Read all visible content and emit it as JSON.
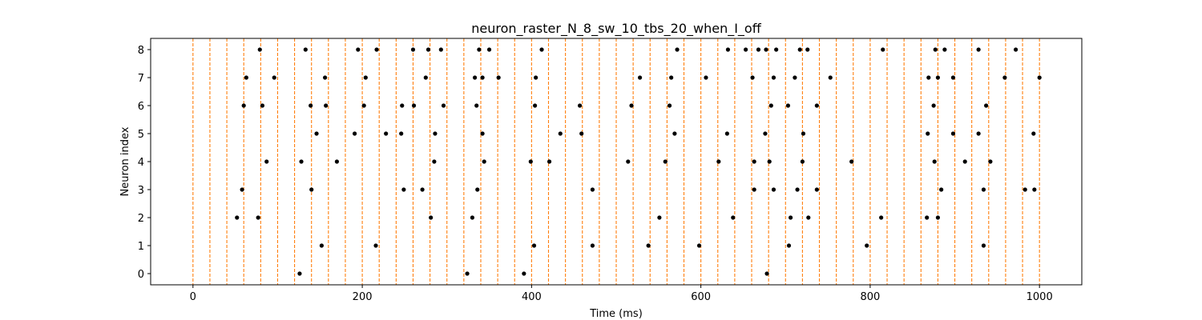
{
  "chart_data": {
    "type": "scatter",
    "title": "neuron_raster_N_8_sw_10_tbs_20_when_I_off",
    "xlabel": "Time (ms)",
    "ylabel": "Neuron index",
    "xlim": [
      -50,
      1050
    ],
    "ylim": [
      -0.4,
      8.4
    ],
    "x_ticks": [
      0,
      200,
      400,
      600,
      800,
      1000
    ],
    "y_ticks": [
      0,
      1,
      2,
      3,
      4,
      5,
      6,
      7,
      8
    ],
    "grid": false,
    "marker_color": "#000000",
    "vline_color": "#ff7f0e",
    "vlines": [
      0,
      20,
      40,
      60,
      80,
      100,
      120,
      140,
      160,
      180,
      200,
      220,
      240,
      260,
      280,
      300,
      320,
      340,
      360,
      380,
      400,
      420,
      440,
      460,
      480,
      500,
      520,
      540,
      560,
      580,
      600,
      620,
      640,
      660,
      680,
      700,
      720,
      740,
      760,
      780,
      800,
      820,
      840,
      860,
      880,
      900,
      920,
      940,
      960,
      980,
      1000
    ],
    "series": [
      {
        "neuron": 0,
        "x": [
          126,
          324,
          391,
          678
        ]
      },
      {
        "neuron": 1,
        "x": [
          152,
          216,
          403,
          472,
          538,
          598,
          704,
          796,
          934
        ]
      },
      {
        "neuron": 2,
        "x": [
          52,
          77,
          281,
          330,
          551,
          638,
          706,
          727,
          813,
          867,
          880
        ]
      },
      {
        "neuron": 3,
        "x": [
          58,
          140,
          249,
          271,
          336,
          472,
          663,
          686,
          714,
          737,
          884,
          934,
          983,
          994
        ]
      },
      {
        "neuron": 4,
        "x": [
          87,
          128,
          170,
          285,
          344,
          399,
          421,
          514,
          558,
          621,
          663,
          681,
          720,
          778,
          876,
          912,
          942
        ]
      },
      {
        "neuron": 5,
        "x": [
          146,
          191,
          228,
          246,
          286,
          342,
          434,
          459,
          569,
          631,
          676,
          721,
          868,
          898,
          928,
          993
        ]
      },
      {
        "neuron": 6,
        "x": [
          60,
          82,
          139,
          157,
          202,
          247,
          261,
          296,
          335,
          404,
          457,
          518,
          563,
          683,
          703,
          737,
          875,
          937
        ]
      },
      {
        "neuron": 7,
        "x": [
          63,
          96,
          156,
          204,
          275,
          333,
          342,
          361,
          405,
          528,
          565,
          606,
          661,
          686,
          711,
          753,
          869,
          880,
          898,
          959,
          1000
        ]
      },
      {
        "neuron": 8,
        "x": [
          79,
          133,
          195,
          217,
          260,
          278,
          293,
          338,
          350,
          412,
          572,
          632,
          653,
          668,
          677,
          689,
          717,
          726,
          815,
          877,
          888,
          928,
          972
        ]
      }
    ]
  }
}
